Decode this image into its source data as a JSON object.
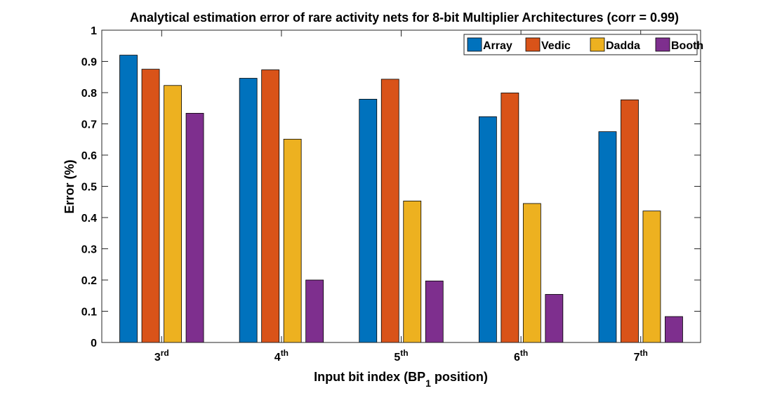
{
  "chart_data": {
    "type": "bar",
    "title": "Analytical estimation error of rare activity nets for 8-bit Multiplier Architectures (corr = 0.99)",
    "xlabel": "Input bit index (BP₁ position)",
    "ylabel": "Error (%)",
    "categories": [
      {
        "base": "3",
        "sup": "rd"
      },
      {
        "base": "4",
        "sup": "th"
      },
      {
        "base": "5",
        "sup": "th"
      },
      {
        "base": "6",
        "sup": "th"
      },
      {
        "base": "7",
        "sup": "th"
      }
    ],
    "ylim": [
      0,
      1
    ],
    "yticks": [
      "0",
      "0.1",
      "0.2",
      "0.3",
      "0.4",
      "0.5",
      "0.6",
      "0.7",
      "0.8",
      "0.9",
      "1"
    ],
    "grid": false,
    "legend_position": "top-right",
    "series": [
      {
        "name": "Array",
        "color": "#0072BD",
        "values": [
          0.92,
          0.846,
          0.779,
          0.723,
          0.675
        ]
      },
      {
        "name": "Vedic",
        "color": "#D95319",
        "values": [
          0.875,
          0.873,
          0.843,
          0.799,
          0.777
        ]
      },
      {
        "name": "Dadda",
        "color": "#EDB120",
        "values": [
          0.823,
          0.651,
          0.453,
          0.445,
          0.421
        ]
      },
      {
        "name": "Booth",
        "color": "#7E2F8E",
        "values": [
          0.734,
          0.2,
          0.197,
          0.154,
          0.083
        ]
      }
    ]
  }
}
